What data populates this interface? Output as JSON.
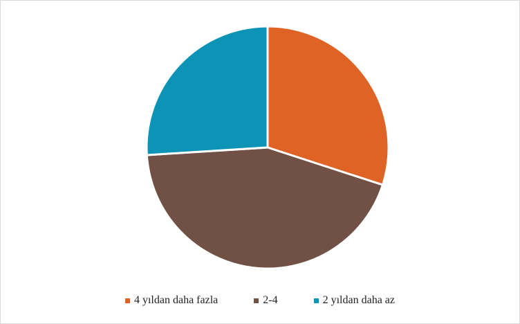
{
  "chart_data": {
    "type": "pie",
    "title": "",
    "categories": [
      "4 yıldan daha fazla",
      "2-4",
      "2 yıldan daha az"
    ],
    "values": [
      30,
      44,
      26
    ],
    "colors": [
      "#e06326",
      "#715045",
      "#0c93b6"
    ],
    "start_angle_deg": 0,
    "direction": "clockwise",
    "legend_position": "bottom"
  }
}
